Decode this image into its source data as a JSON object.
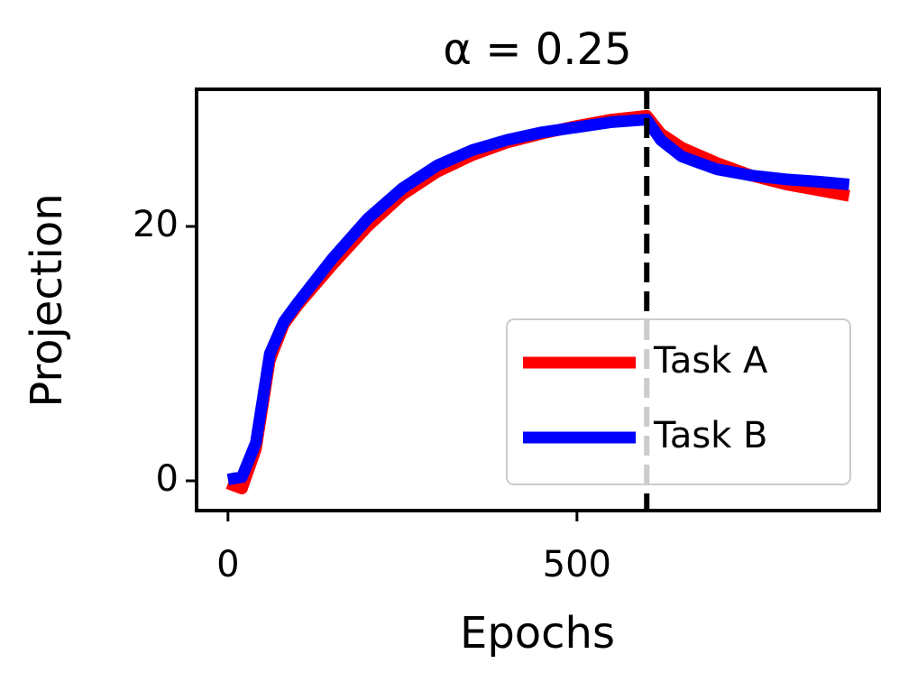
{
  "chart_data": {
    "type": "line",
    "title": "α = 0.25",
    "xlabel": "Epochs",
    "ylabel": "Projection",
    "x": [
      0,
      20,
      40,
      60,
      80,
      100,
      150,
      200,
      250,
      300,
      350,
      400,
      450,
      500,
      550,
      600,
      620,
      650,
      700,
      750,
      800,
      850,
      890
    ],
    "series": [
      {
        "name": "Task A",
        "color": "#ff0000",
        "values": [
          -0.2,
          -0.6,
          2.5,
          9.5,
          12.3,
          13.8,
          17,
          20,
          22.5,
          24.3,
          25.6,
          26.6,
          27.3,
          27.9,
          28.4,
          28.7,
          27.3,
          26.2,
          25,
          24,
          23.3,
          22.8,
          22.4
        ]
      },
      {
        "name": "Task B",
        "color": "#0000ff",
        "values": [
          0.1,
          0.3,
          3,
          10,
          12.5,
          14,
          17.5,
          20.6,
          23,
          24.8,
          26,
          26.8,
          27.4,
          27.8,
          28.2,
          28.4,
          26.8,
          25.5,
          24.5,
          24,
          23.7,
          23.5,
          23.3
        ]
      }
    ],
    "xlim": [
      -45,
      933
    ],
    "ylim": [
      -2.34,
      30.78
    ],
    "xticks": [
      0,
      500
    ],
    "yticks": [
      0,
      20
    ],
    "vline": 600,
    "legend": "lower right"
  }
}
